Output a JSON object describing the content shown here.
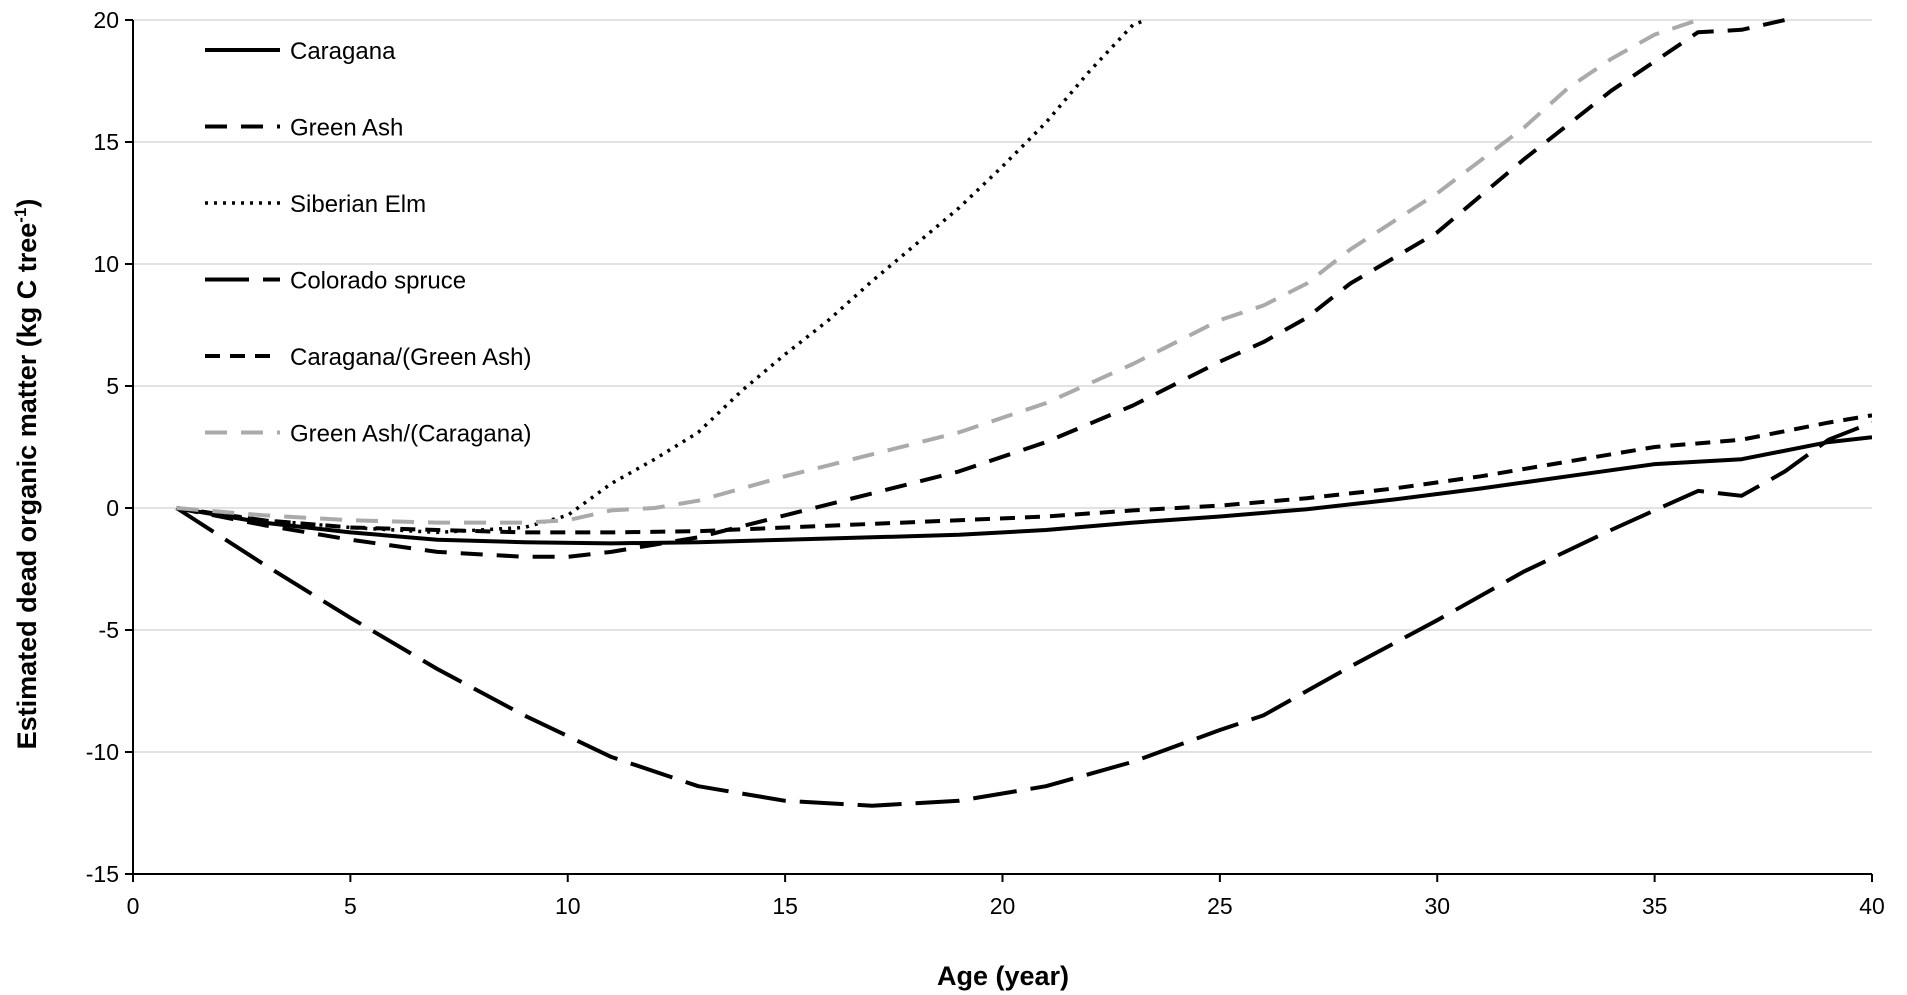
{
  "chart_data": {
    "type": "line",
    "title": "",
    "xlabel": "Age (year)",
    "ylabel": "Estimated dead organic matter (kg C tree",
    "ylabel_sup": "-1",
    "ylabel_suffix": ")",
    "xlim": [
      0,
      40
    ],
    "ylim": [
      -15,
      20
    ],
    "xticks": [
      0,
      5,
      10,
      15,
      20,
      25,
      30,
      35,
      40
    ],
    "yticks": [
      -15,
      -10,
      -5,
      0,
      5,
      10,
      15,
      20
    ],
    "grid": true,
    "legend_position": "top-left",
    "series": [
      {
        "name": "Caragana",
        "style": "solid",
        "color": "#000000",
        "x": [
          1,
          3,
          5,
          7,
          9,
          11,
          13,
          15,
          17,
          19,
          21,
          23,
          25,
          27,
          29,
          31,
          33,
          35,
          37,
          39,
          40
        ],
        "y": [
          0,
          -0.6,
          -1.0,
          -1.3,
          -1.4,
          -1.45,
          -1.4,
          -1.3,
          -1.2,
          -1.1,
          -0.9,
          -0.6,
          -0.35,
          -0.05,
          0.35,
          0.8,
          1.3,
          1.8,
          2.0,
          2.7,
          2.9
        ]
      },
      {
        "name": "Green Ash",
        "style": "dash",
        "color": "#000000",
        "x": [
          1,
          3,
          5,
          7,
          9,
          10,
          11,
          12,
          13,
          15,
          17,
          19,
          21,
          23,
          25,
          26,
          27,
          28,
          30,
          32,
          34,
          36,
          37,
          38
        ],
        "y": [
          0,
          -0.7,
          -1.3,
          -1.8,
          -2.0,
          -2.0,
          -1.8,
          -1.5,
          -1.2,
          -0.3,
          0.6,
          1.5,
          2.7,
          4.2,
          6.0,
          6.8,
          7.8,
          9.2,
          11.3,
          14.3,
          17.1,
          19.5,
          19.6,
          20.0
        ]
      },
      {
        "name": "Siberian Elm",
        "style": "dot",
        "color": "#000000",
        "x": [
          1,
          3,
          5,
          7,
          9,
          10,
          11,
          12,
          13,
          14,
          15,
          16,
          17,
          18,
          19,
          20,
          21,
          22,
          23,
          23.3
        ],
        "y": [
          0,
          -0.5,
          -0.8,
          -1.0,
          -0.8,
          -0.3,
          1.0,
          2.0,
          3.1,
          4.8,
          6.3,
          7.7,
          9.3,
          10.8,
          12.3,
          14.0,
          15.8,
          17.9,
          19.8,
          20.0
        ]
      },
      {
        "name": "Colorado spruce",
        "style": "longdash",
        "color": "#000000",
        "x": [
          1,
          3,
          5,
          7,
          9,
          11,
          13,
          15,
          17,
          19,
          21,
          23,
          25,
          26,
          27,
          28,
          30,
          32,
          34,
          35,
          36,
          37,
          38,
          39,
          40
        ],
        "y": [
          0,
          -2.3,
          -4.5,
          -6.6,
          -8.5,
          -10.2,
          -11.4,
          -12.0,
          -12.2,
          -12.0,
          -11.4,
          -10.4,
          -9.1,
          -8.5,
          -7.5,
          -6.5,
          -4.6,
          -2.6,
          -0.9,
          -0.1,
          0.7,
          0.5,
          1.5,
          2.8,
          3.5
        ]
      },
      {
        "name": "Caragana/(Green Ash)",
        "style": "shortdash",
        "color": "#000000",
        "x": [
          1,
          3,
          5,
          7,
          9,
          11,
          13,
          15,
          17,
          19,
          21,
          23,
          25,
          27,
          29,
          31,
          33,
          35,
          37,
          39,
          40
        ],
        "y": [
          0,
          -0.5,
          -0.8,
          -0.9,
          -1.0,
          -1.0,
          -0.95,
          -0.8,
          -0.65,
          -0.5,
          -0.35,
          -0.1,
          0.1,
          0.4,
          0.8,
          1.3,
          1.9,
          2.5,
          2.8,
          3.5,
          3.8
        ]
      },
      {
        "name": "Green Ash/(Caragana)",
        "style": "dash",
        "color": "#aaaaaa",
        "x": [
          1,
          3,
          5,
          7,
          9,
          10,
          11,
          12,
          13,
          15,
          17,
          19,
          21,
          23,
          25,
          26,
          27,
          28,
          30,
          32,
          33,
          34,
          35,
          36
        ],
        "y": [
          0,
          -0.3,
          -0.5,
          -0.6,
          -0.6,
          -0.5,
          -0.1,
          0.0,
          0.3,
          1.3,
          2.2,
          3.1,
          4.3,
          5.9,
          7.7,
          8.3,
          9.2,
          10.6,
          12.9,
          15.6,
          17.2,
          18.4,
          19.4,
          20.0
        ]
      }
    ]
  }
}
